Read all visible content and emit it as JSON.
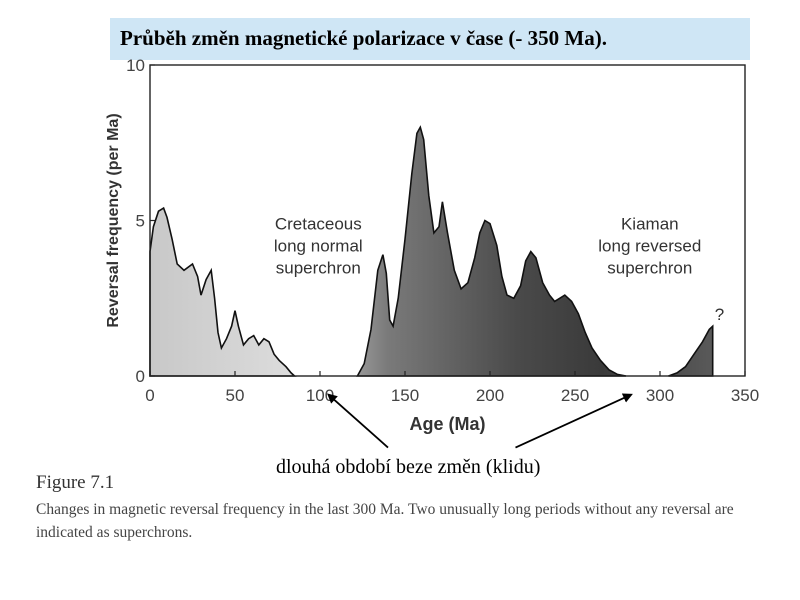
{
  "slide": {
    "title": "Průběh změn magnetické polarizace v čase (- 350 Ma).",
    "note": "dlouhá období beze změn (klidu)"
  },
  "figure": {
    "label": "Figure 7.1",
    "caption": "Changes in magnetic reversal frequency in the last 300 Ma. Two unusually long periods without any reversal are indicated as superchrons."
  },
  "chart_data": {
    "type": "area",
    "xlabel": "Age (Ma)",
    "ylabel": "Reversal frequency (per Ma)",
    "xlim": [
      0,
      350
    ],
    "ylim": [
      0,
      10
    ],
    "x_ticks": [
      0,
      50,
      100,
      150,
      200,
      250,
      300,
      350
    ],
    "y_ticks": [
      0,
      5,
      10
    ],
    "grid": false,
    "series": [
      {
        "x": [
          0,
          2,
          5,
          8,
          10,
          13,
          16,
          20,
          25,
          28,
          30,
          33,
          36,
          38,
          40,
          42,
          45,
          48,
          50,
          52,
          55,
          58,
          61,
          64,
          67,
          70,
          73,
          76,
          80,
          83,
          85
        ],
        "y": [
          4.0,
          4.8,
          5.3,
          5.4,
          5.1,
          4.4,
          3.6,
          3.4,
          3.6,
          3.2,
          2.6,
          3.1,
          3.4,
          2.5,
          1.4,
          0.9,
          1.2,
          1.6,
          2.1,
          1.6,
          1.0,
          1.2,
          1.3,
          1.0,
          1.2,
          1.1,
          0.7,
          0.5,
          0.3,
          0.1,
          0.0
        ]
      },
      {
        "x": [
          122,
          126,
          130,
          134,
          137,
          139,
          141,
          143,
          146,
          150,
          154,
          157,
          159,
          161,
          164,
          167,
          170,
          172,
          175,
          179,
          183,
          187,
          191,
          194,
          197,
          200,
          204,
          207,
          210,
          214,
          218,
          221,
          224,
          227,
          231,
          235,
          238,
          241,
          244,
          248,
          252,
          256,
          260,
          265,
          270,
          275,
          280
        ],
        "y": [
          0.0,
          0.4,
          1.5,
          3.4,
          3.9,
          3.3,
          1.8,
          1.6,
          2.5,
          4.4,
          6.5,
          7.8,
          8.0,
          7.6,
          5.8,
          4.6,
          4.8,
          5.6,
          4.6,
          3.4,
          2.8,
          3.0,
          3.8,
          4.6,
          5.0,
          4.9,
          4.2,
          3.2,
          2.6,
          2.5,
          2.9,
          3.7,
          4.0,
          3.8,
          3.0,
          2.6,
          2.4,
          2.5,
          2.6,
          2.4,
          2.0,
          1.4,
          0.9,
          0.5,
          0.2,
          0.05,
          0.0
        ]
      },
      {
        "x": [
          305,
          310,
          315,
          320,
          325,
          329,
          331
        ],
        "y": [
          0.0,
          0.1,
          0.3,
          0.7,
          1.1,
          1.5,
          1.6
        ]
      }
    ],
    "annotations": [
      {
        "lines": [
          "Cretaceous",
          "long normal",
          "superchron"
        ],
        "x": 99,
        "y": 3.3
      },
      {
        "lines": [
          "Kiaman",
          "long reversed",
          "superchron"
        ],
        "x": 294,
        "y": 3.3
      },
      {
        "text": "?",
        "x": 335,
        "y": 1.8
      }
    ],
    "arrows": [
      {
        "from": [
          140,
          -2.3
        ],
        "to": [
          105,
          -0.6
        ]
      },
      {
        "from": [
          215,
          -2.3
        ],
        "to": [
          283,
          -0.6
        ]
      }
    ]
  }
}
